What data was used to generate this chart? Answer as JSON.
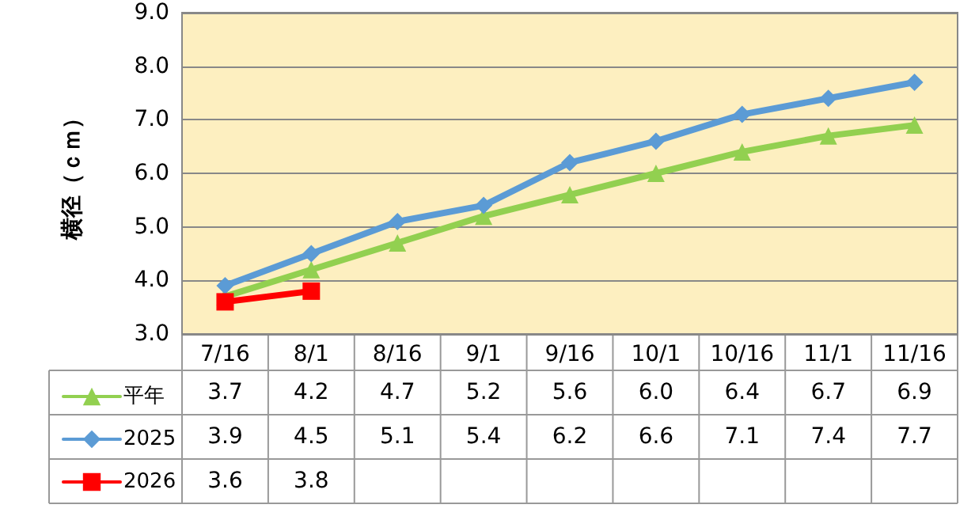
{
  "chart_data": {
    "type": "line",
    "ylabel": "横径（ｃｍ）",
    "categories": [
      "7/16",
      "8/1",
      "8/16",
      "9/1",
      "9/16",
      "10/1",
      "10/16",
      "11/1",
      "11/16"
    ],
    "series": [
      {
        "name": "平年",
        "color": "#92d050",
        "marker": "triangle",
        "values": [
          3.7,
          4.2,
          4.7,
          5.2,
          5.6,
          6.0,
          6.4,
          6.7,
          6.9
        ],
        "value_labels": [
          "3.7",
          "4.2",
          "4.7",
          "5.2",
          "5.6",
          "6.0",
          "6.4",
          "6.7",
          "6.9"
        ]
      },
      {
        "name": "2025",
        "color": "#5b9bd5",
        "marker": "diamond",
        "values": [
          3.9,
          4.5,
          5.1,
          5.4,
          6.2,
          6.6,
          7.1,
          7.4,
          7.7
        ],
        "value_labels": [
          "3.9",
          "4.5",
          "5.1",
          "5.4",
          "6.2",
          "6.6",
          "7.1",
          "7.4",
          "7.7"
        ]
      },
      {
        "name": "2026",
        "color": "#ff0000",
        "marker": "square",
        "values": [
          3.6,
          3.8,
          null,
          null,
          null,
          null,
          null,
          null,
          null
        ],
        "value_labels": [
          "3.6",
          "3.8",
          null,
          null,
          null,
          null,
          null,
          null,
          null
        ]
      }
    ],
    "ylim": [
      3,
      9
    ],
    "yticks": [
      {
        "value": 3,
        "label": "3.0"
      },
      {
        "value": 4,
        "label": "4.0"
      },
      {
        "value": 5,
        "label": "5.0"
      },
      {
        "value": 6,
        "label": "6.0"
      },
      {
        "value": 7,
        "label": "7.0"
      },
      {
        "value": 8,
        "label": "8.0"
      },
      {
        "value": 9,
        "label": "9.0"
      }
    ],
    "grid": "y",
    "legend": "bottom left",
    "line_style": "solid"
  }
}
